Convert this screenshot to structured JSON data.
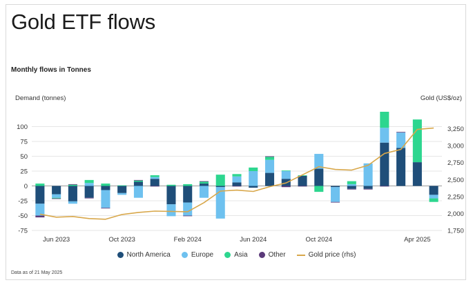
{
  "header": {
    "title": "Gold ETF flows",
    "subtitle": "Monthly flows in Tonnes"
  },
  "footnote": "Data as of 21 May 2025",
  "colors": {
    "north_america": "#1f4e79",
    "europe": "#6ec1ef",
    "asia": "#2dd68f",
    "other": "#5b3a7a",
    "gold_line": "#d8a74a",
    "grid": "#e6e6e6",
    "axis_text": "#333333"
  },
  "chart_data": {
    "type": "bar",
    "stacked": true,
    "title": "Gold ETF flows",
    "subtitle": "Monthly flows in Tonnes",
    "ylabel": "Demand (tonnes)",
    "y2label": "Gold (US$/oz)",
    "ylim": [
      -75,
      125
    ],
    "y2lim": [
      1750,
      3500
    ],
    "yticks": [
      -75,
      -50,
      -25,
      0,
      25,
      50,
      75,
      100
    ],
    "y2ticks": [
      1750,
      2000,
      2250,
      2500,
      2750,
      3000,
      3250
    ],
    "y2tick_labels": [
      "1,750",
      "2,000",
      "2,250",
      "2,500",
      "2,750",
      "3,000",
      "3,250"
    ],
    "xtick_labels": [
      "Jun 2023",
      "Oct 2023",
      "Feb 2024",
      "Jun 2024",
      "Oct 2024",
      "Apr 2025"
    ],
    "xtick_indices": [
      1,
      5,
      9,
      13,
      17,
      23
    ],
    "categories": [
      "May 2023",
      "Jun 2023",
      "Jul 2023",
      "Aug 2023",
      "Sep 2023",
      "Oct 2023",
      "Nov 2023",
      "Dec 2023",
      "Jan 2024",
      "Feb 2024",
      "Mar 2024",
      "Apr 2024",
      "May 2024",
      "Jun 2024",
      "Jul 2024",
      "Aug 2024",
      "Sep 2024",
      "Oct 2024",
      "Nov 2024",
      "Dec 2024",
      "Jan 2025",
      "Feb 2025",
      "Mar 2025",
      "Apr 2025",
      "May 2025"
    ],
    "grid": true,
    "legend_position": "bottom",
    "series": [
      {
        "name": "North America",
        "values": [
          -30,
          -14,
          -26,
          -20,
          -7,
          -12,
          7,
          12,
          -31,
          -28,
          4,
          -2,
          6,
          -3,
          22,
          12,
          17,
          29,
          -2,
          -5,
          -5,
          73,
          64,
          40,
          -15
        ]
      },
      {
        "name": "Europe",
        "values": [
          -20,
          -6,
          -4,
          5,
          -30,
          -3,
          -20,
          3,
          -20,
          -22,
          -20,
          -53,
          10,
          25,
          22,
          13,
          0,
          25,
          -25,
          3,
          38,
          25,
          26,
          0,
          -6
        ]
      },
      {
        "name": "Asia",
        "values": [
          4,
          -1,
          2,
          5,
          4,
          1,
          2,
          3,
          2,
          3,
          3,
          19,
          4,
          6,
          5,
          1,
          1,
          -10,
          0,
          5,
          0,
          27,
          0,
          72,
          -6
        ]
      },
      {
        "name": "Other",
        "values": [
          -3,
          -1,
          1,
          -1,
          -1,
          0,
          1,
          -1,
          0,
          -1,
          1,
          0,
          -1,
          0,
          1,
          -2,
          -1,
          0,
          -1,
          -1,
          -1,
          -1,
          1,
          0,
          0
        ]
      }
    ],
    "line_series": {
      "name": "Gold price (rhs)",
      "axis": "right",
      "values": [
        1990,
        1945,
        1955,
        1925,
        1915,
        1985,
        2015,
        2035,
        2030,
        2025,
        2160,
        2330,
        2345,
        2325,
        2395,
        2450,
        2570,
        2690,
        2650,
        2640,
        2710,
        2885,
        2945,
        3240,
        3260
      ]
    }
  },
  "legend": [
    {
      "label": "North America",
      "kind": "dot",
      "color": "#1f4e79"
    },
    {
      "label": "Europe",
      "kind": "dot",
      "color": "#6ec1ef"
    },
    {
      "label": "Asia",
      "kind": "dot",
      "color": "#2dd68f"
    },
    {
      "label": "Other",
      "kind": "dot",
      "color": "#5b3a7a"
    },
    {
      "label": "Gold price (rhs)",
      "kind": "line",
      "color": "#d8a74a"
    }
  ]
}
